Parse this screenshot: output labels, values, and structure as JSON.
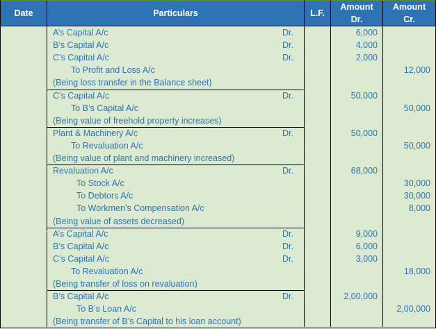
{
  "header": {
    "date": "Date",
    "particulars": "Particulars",
    "lf": "L.F.",
    "amount_dr_1": "Amount",
    "amount_dr_2": "Dr.",
    "amount_cr_1": "Amount",
    "amount_cr_2": "Cr."
  },
  "entries": [
    {
      "lines": [
        {
          "text": "A’s Capital A/c",
          "indent": 0,
          "dr_mark": "Dr.",
          "dr": "6,000",
          "cr": ""
        },
        {
          "text": "B’s Capital A/c",
          "indent": 0,
          "dr_mark": "Dr.",
          "dr": "4,000",
          "cr": ""
        },
        {
          "text": "C’s Capital A/c",
          "indent": 0,
          "dr_mark": "Dr.",
          "dr": "2,000",
          "cr": ""
        },
        {
          "text": "To Profit and Loss A/c",
          "indent": 1,
          "dr_mark": "",
          "dr": "",
          "cr": "12,000"
        },
        {
          "text": "(Being loss transfer in the Balance sheet)",
          "indent": 0,
          "dr_mark": "",
          "dr": "",
          "cr": ""
        }
      ]
    },
    {
      "lines": [
        {
          "text": "C’s Capital A/c",
          "indent": 0,
          "dr_mark": "Dr.",
          "dr": "50,000",
          "cr": ""
        },
        {
          "text": "To B’s Capital A/c",
          "indent": 1,
          "dr_mark": "",
          "dr": "",
          "cr": "50,000"
        },
        {
          "text": "(Being value of freehold property increases)",
          "indent": 0,
          "dr_mark": "",
          "dr": "",
          "cr": ""
        }
      ]
    },
    {
      "lines": [
        {
          "text": "Plant & Machinery A/c",
          "indent": 0,
          "dr_mark": "Dr.",
          "dr": "50,000",
          "cr": ""
        },
        {
          "text": "To Revaluation A/c",
          "indent": 1,
          "dr_mark": "",
          "dr": "",
          "cr": "50,000"
        },
        {
          "text": "(Being value of plant and machinery increased)",
          "indent": 0,
          "dr_mark": "",
          "dr": "",
          "cr": ""
        }
      ]
    },
    {
      "lines": [
        {
          "text": "Revaluation A/c",
          "indent": 0,
          "dr_mark": "Dr.",
          "dr": "68,000",
          "cr": ""
        },
        {
          "text": "To Stock A/c",
          "indent": 2,
          "dr_mark": "",
          "dr": "",
          "cr": "30,000"
        },
        {
          "text": "To Debtors A/c",
          "indent": 2,
          "dr_mark": "",
          "dr": "",
          "cr": "30,000"
        },
        {
          "text": "To Workmen’s Compensation A/c",
          "indent": 2,
          "dr_mark": "",
          "dr": "",
          "cr": "8,000"
        },
        {
          "text": "(Being value of assets decreased)",
          "indent": 0,
          "dr_mark": "",
          "dr": "",
          "cr": ""
        }
      ]
    },
    {
      "lines": [
        {
          "text": "A’s Capital A/c",
          "indent": 0,
          "dr_mark": "Dr.",
          "dr": "9,000",
          "cr": ""
        },
        {
          "text": "B’s Capital A/c",
          "indent": 0,
          "dr_mark": "Dr.",
          "dr": "6,000",
          "cr": ""
        },
        {
          "text": "C’s Capital A/c",
          "indent": 0,
          "dr_mark": "Dr.",
          "dr": "3,000",
          "cr": ""
        },
        {
          "text": "To Revaluation A/c",
          "indent": 1,
          "dr_mark": "",
          "dr": "",
          "cr": "18,000"
        },
        {
          "text": "(Being transfer of loss on revaluation)",
          "indent": 0,
          "dr_mark": "",
          "dr": "",
          "cr": ""
        }
      ]
    },
    {
      "lines": [
        {
          "text": "B’s Capital A/c",
          "indent": 0,
          "dr_mark": "Dr.",
          "dr": "2,00,000",
          "cr": ""
        },
        {
          "text": "To B’s Loan A/c",
          "indent": 2,
          "dr_mark": "",
          "dr": "",
          "cr": "2,00,000"
        },
        {
          "text": "(Being transfer of B’s Capital to his loan account)",
          "indent": 0,
          "dr_mark": "",
          "dr": "",
          "cr": ""
        }
      ]
    }
  ],
  "colors": {
    "header_bg": "#2e74b5",
    "body_bg": "#dbead0",
    "text": "#2e74b5"
  }
}
